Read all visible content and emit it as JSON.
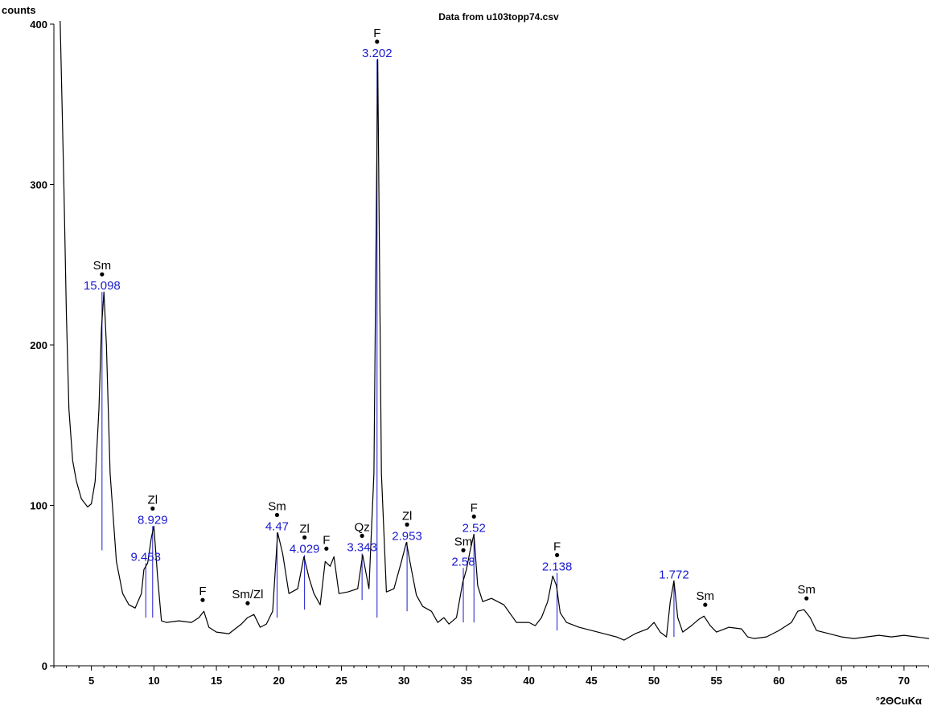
{
  "chart_data": {
    "type": "line",
    "title": "Data from u103topp74.csv",
    "ylabel": "counts",
    "xlabel": "°2ΘCuKα",
    "xlim": [
      2,
      72
    ],
    "ylim": [
      0,
      400
    ],
    "x_ticks": [
      5,
      10,
      15,
      20,
      25,
      30,
      35,
      40,
      45,
      50,
      55,
      60,
      65,
      70
    ],
    "y_ticks": [
      0,
      100,
      200,
      300,
      400
    ],
    "line_color": "#000000",
    "stick_color": "#1a1ad0",
    "series": [
      {
        "x": [
          2.5,
          2.8,
          3.0,
          3.2,
          3.5,
          3.8,
          4.2,
          4.7,
          5.0,
          5.3,
          5.6,
          5.8,
          6.0,
          6.2,
          6.5,
          7.0,
          7.5,
          8.0,
          8.5,
          9.0,
          9.2,
          9.5,
          9.8,
          10.0,
          10.3,
          10.6,
          11.0,
          12.0,
          13.0,
          13.6,
          14.0,
          14.4,
          15.0,
          16.0,
          17.0,
          17.5,
          18.0,
          18.5,
          19.0,
          19.5,
          19.9,
          20.3,
          20.8,
          21.5,
          22.0,
          22.4,
          22.8,
          23.3,
          23.7,
          24.1,
          24.4,
          24.8,
          25.5,
          26.3,
          26.7,
          27.2,
          27.6,
          27.9,
          28.2,
          28.6,
          29.2,
          29.8,
          30.2,
          30.6,
          31.0,
          31.5,
          32.2,
          32.7,
          33.2,
          33.6,
          34.2,
          34.7,
          35.0,
          35.3,
          35.6,
          35.9,
          36.3,
          37.0,
          38.0,
          39.0,
          40.0,
          40.5,
          41.0,
          41.5,
          41.9,
          42.2,
          42.5,
          43.0,
          44.0,
          45.0,
          46.0,
          47.0,
          47.6,
          48.5,
          49.5,
          50.0,
          50.5,
          51.0,
          51.3,
          51.6,
          51.9,
          52.3,
          53.0,
          53.6,
          54.0,
          54.5,
          55.0,
          56.0,
          57.0,
          57.5,
          58.0,
          59.0,
          60.0,
          61.0,
          61.5,
          62.0,
          62.5,
          63.0,
          64.0,
          65.0,
          66.0,
          67.0,
          68.0,
          69.0,
          70.0,
          71.0,
          72.0
        ],
        "y": [
          410,
          300,
          220,
          160,
          128,
          115,
          104,
          99,
          101,
          115,
          160,
          210,
          233,
          200,
          120,
          65,
          45,
          38,
          36,
          45,
          60,
          64,
          80,
          87,
          55,
          28,
          27,
          28,
          27,
          30,
          34,
          24,
          21,
          20,
          26,
          30,
          32,
          24,
          26,
          34,
          83,
          70,
          45,
          48,
          68,
          55,
          45,
          38,
          65,
          62,
          68,
          45,
          46,
          48,
          69,
          48,
          120,
          378,
          120,
          46,
          48,
          65,
          77,
          60,
          44,
          37,
          34,
          27,
          30,
          26,
          30,
          52,
          60,
          72,
          82,
          50,
          40,
          42,
          38,
          27,
          27,
          25,
          30,
          40,
          56,
          50,
          33,
          27,
          24,
          22,
          20,
          18,
          16,
          20,
          23,
          27,
          21,
          18,
          40,
          53,
          30,
          21,
          25,
          29,
          31,
          25,
          21,
          24,
          23,
          18,
          17,
          18,
          22,
          27,
          34,
          35,
          30,
          22,
          20,
          18,
          17,
          18,
          19,
          18,
          19,
          18,
          17
        ]
      }
    ],
    "peaks": [
      {
        "x": 5.85,
        "height": 233,
        "mineral": "Sm",
        "d": "15.098",
        "stick_top": 233,
        "stick_bottom": 72
      },
      {
        "x": 9.35,
        "height": 64,
        "mineral": "",
        "d": "9.453",
        "stick_top": 64,
        "stick_bottom": 30
      },
      {
        "x": 9.9,
        "height": 87,
        "mineral": "Zl",
        "d": "8.929",
        "stick_top": 87,
        "stick_bottom": 30
      },
      {
        "x": 13.9,
        "height": 34,
        "mineral": "F",
        "d": "",
        "stick_top": null,
        "stick_bottom": null
      },
      {
        "x": 17.5,
        "height": 32,
        "mineral": "Sm/Zl",
        "d": "",
        "stick_top": null,
        "stick_bottom": null
      },
      {
        "x": 19.85,
        "height": 83,
        "mineral": "Sm",
        "d": "4.47",
        "stick_top": 83,
        "stick_bottom": 30
      },
      {
        "x": 22.05,
        "height": 69,
        "mineral": "Zl",
        "d": "4.029",
        "stick_top": 69,
        "stick_bottom": 35
      },
      {
        "x": 23.8,
        "height": 66,
        "mineral": "F",
        "d": "",
        "stick_top": null,
        "stick_bottom": null
      },
      {
        "x": 26.65,
        "height": 70,
        "mineral": "Qz",
        "d": "3.343",
        "stick_top": 70,
        "stick_bottom": 41
      },
      {
        "x": 27.85,
        "height": 378,
        "mineral": "F",
        "d": "3.202",
        "stick_top": 378,
        "stick_bottom": 30
      },
      {
        "x": 30.25,
        "height": 77,
        "mineral": "Zl",
        "d": "2.953",
        "stick_top": 77,
        "stick_bottom": 34
      },
      {
        "x": 34.75,
        "height": 61,
        "mineral": "Sm",
        "d": "2.58",
        "stick_top": 61,
        "stick_bottom": 27
      },
      {
        "x": 35.6,
        "height": 82,
        "mineral": "F",
        "d": "2.52",
        "stick_top": 82,
        "stick_bottom": 27
      },
      {
        "x": 42.25,
        "height": 58,
        "mineral": "F",
        "d": "2.138",
        "stick_top": 58,
        "stick_bottom": 22
      },
      {
        "x": 51.6,
        "height": 53,
        "mineral": "",
        "d": "1.772",
        "stick_top": 53,
        "stick_bottom": 18
      },
      {
        "x": 54.1,
        "height": 31,
        "mineral": "Sm",
        "d": "",
        "stick_top": null,
        "stick_bottom": null
      },
      {
        "x": 62.2,
        "height": 35,
        "mineral": "Sm",
        "d": "",
        "stick_top": null,
        "stick_bottom": null
      }
    ],
    "grid": false,
    "legend": "none"
  }
}
